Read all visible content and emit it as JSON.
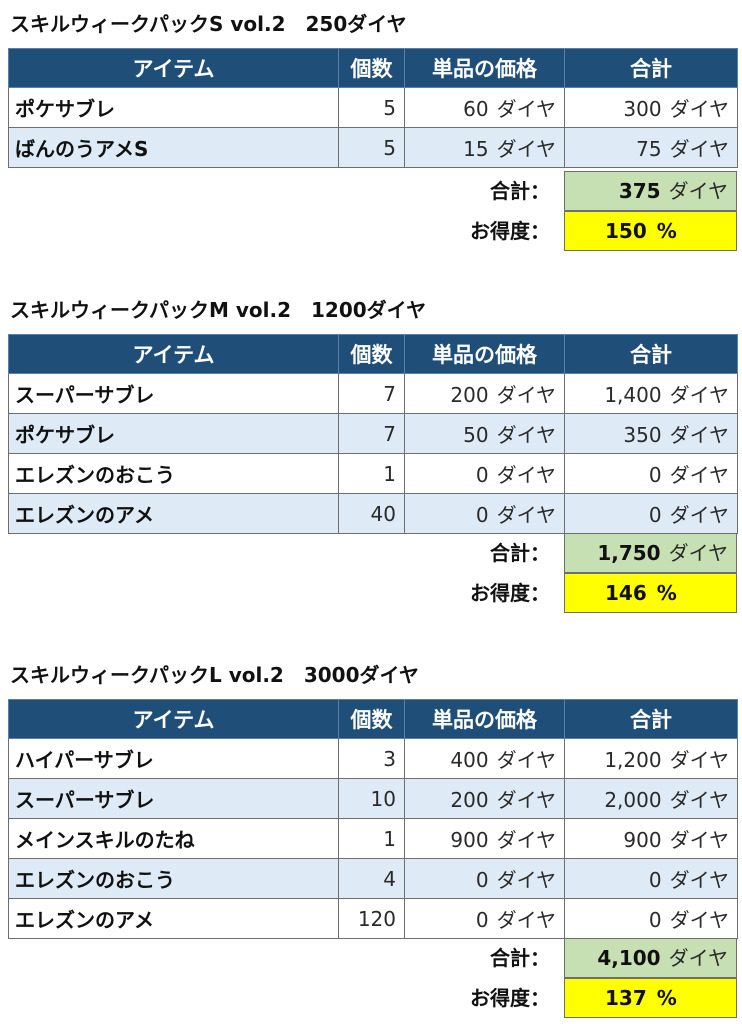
{
  "headers": {
    "item": "アイテム",
    "qty": "個数",
    "unit_price": "単品の価格",
    "total": "合計"
  },
  "labels": {
    "total": "合計：",
    "value_ratio": "お得度：",
    "currency": "ダイヤ",
    "percent": "%"
  },
  "packs": [
    {
      "title": "スキルウィークパックS vol.2　250ダイヤ",
      "items": [
        {
          "name": "ポケサブレ",
          "qty": "5",
          "unit": "60",
          "total": "300"
        },
        {
          "name": "ばんのうアメS",
          "qty": "5",
          "unit": "15",
          "total": "75"
        }
      ],
      "sum": "375",
      "ratio": "150"
    },
    {
      "title": "スキルウィークパックM vol.2　1200ダイヤ",
      "items": [
        {
          "name": "スーパーサブレ",
          "qty": "7",
          "unit": "200",
          "total": "1,400"
        },
        {
          "name": "ポケサブレ",
          "qty": "7",
          "unit": "50",
          "total": "350"
        },
        {
          "name": "エレズンのおこう",
          "qty": "1",
          "unit": "0",
          "total": "0"
        },
        {
          "name": "エレズンのアメ",
          "qty": "40",
          "unit": "0",
          "total": "0"
        }
      ],
      "sum": "1,750",
      "ratio": "146"
    },
    {
      "title": "スキルウィークパックL vol.2　3000ダイヤ",
      "items": [
        {
          "name": "ハイパーサブレ",
          "qty": "3",
          "unit": "400",
          "total": "1,200"
        },
        {
          "name": "スーパーサブレ",
          "qty": "10",
          "unit": "200",
          "total": "2,000"
        },
        {
          "name": "メインスキルのたね",
          "qty": "1",
          "unit": "900",
          "total": "900"
        },
        {
          "name": "エレズンのおこう",
          "qty": "4",
          "unit": "0",
          "total": "0"
        },
        {
          "name": "エレズンのアメ",
          "qty": "120",
          "unit": "0",
          "total": "0"
        }
      ],
      "sum": "4,100",
      "ratio": "137"
    }
  ]
}
